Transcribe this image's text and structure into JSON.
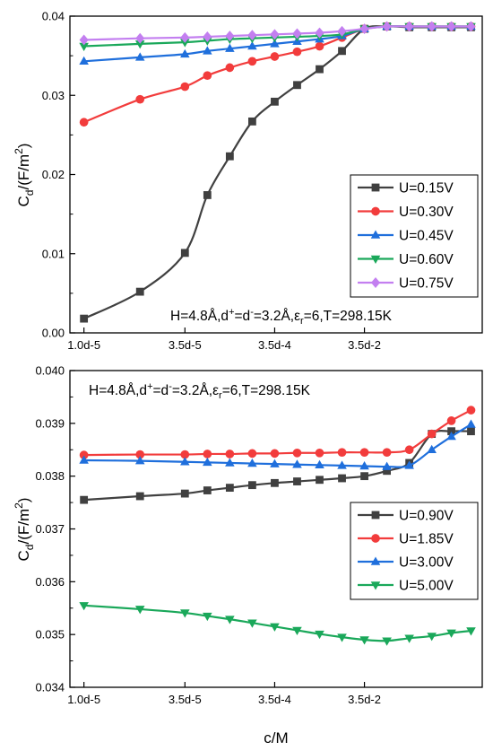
{
  "chart_data": [
    {
      "type": "line",
      "x_ticks": [
        "1.0d-5",
        "3.5d-5",
        "3.5d-4",
        "3.5d-2"
      ],
      "ylim": [
        0,
        0.04
      ],
      "y_ticks": [
        "0.00",
        "0.01",
        "0.02",
        "0.03",
        "0.04"
      ],
      "ylabel": "C",
      "ylabel_sub": "d",
      "ylabel_unit": "/(F/m",
      "ylabel_sup": "2",
      "ylabel_end": ")",
      "legend_position": "bottom-right",
      "annotation": {
        "p1": "H=4.8Å,d",
        "s1": "+",
        "p2": "=d",
        "s2": "-",
        "p3": "=3.2Å,ε",
        "s3": "r",
        "p4": "=6,T=298.15K"
      },
      "series": [
        {
          "name": "U=0.15V",
          "color": "#404040",
          "marker": "square",
          "x": [
            1.0,
            2.0,
            2.8,
            3.2,
            3.6,
            4.0,
            4.4,
            4.8,
            5.2,
            5.6,
            6.0,
            6.4,
            6.8,
            7.2,
            7.55,
            7.9
          ],
          "y": [
            0.0018,
            0.0052,
            0.0101,
            0.0174,
            0.0223,
            0.0267,
            0.0292,
            0.0313,
            0.0333,
            0.0356,
            0.0384,
            0.0387,
            0.0386,
            0.0386,
            0.0386,
            0.0386
          ]
        },
        {
          "name": "U=0.30V",
          "color": "#f23c3c",
          "marker": "circle",
          "x": [
            1.0,
            2.0,
            2.8,
            3.2,
            3.6,
            4.0,
            4.4,
            4.8,
            5.2,
            5.6,
            6.0,
            6.4,
            6.8,
            7.2,
            7.55,
            7.9
          ],
          "y": [
            0.0266,
            0.0295,
            0.0311,
            0.0325,
            0.0335,
            0.0343,
            0.0349,
            0.0355,
            0.0362,
            0.0373,
            0.0384,
            0.0387,
            0.0387,
            0.0387,
            0.0387,
            0.0387
          ]
        },
        {
          "name": "U=0.45V",
          "color": "#1f6fdc",
          "marker": "triangle-up",
          "x": [
            1.0,
            2.0,
            2.8,
            3.2,
            3.6,
            4.0,
            4.4,
            4.8,
            5.2,
            5.6,
            6.0,
            6.4,
            6.8,
            7.2,
            7.55,
            7.9
          ],
          "y": [
            0.0343,
            0.0348,
            0.0352,
            0.0356,
            0.0359,
            0.0362,
            0.0365,
            0.0368,
            0.0371,
            0.0375,
            0.0384,
            0.0387,
            0.0387,
            0.0387,
            0.0387,
            0.0387
          ]
        },
        {
          "name": "U=0.60V",
          "color": "#1aa85a",
          "marker": "triangle-down",
          "x": [
            1.0,
            2.0,
            2.8,
            3.2,
            3.6,
            4.0,
            4.4,
            4.8,
            5.2,
            5.6,
            6.0,
            6.4,
            6.8,
            7.2,
            7.55,
            7.9
          ],
          "y": [
            0.0362,
            0.0365,
            0.0367,
            0.0369,
            0.0371,
            0.0372,
            0.0373,
            0.0374,
            0.0375,
            0.0377,
            0.0384,
            0.0387,
            0.0387,
            0.0387,
            0.0387,
            0.0387
          ]
        },
        {
          "name": "U=0.75V",
          "color": "#c37ff0",
          "marker": "diamond",
          "x": [
            1.0,
            2.0,
            2.8,
            3.2,
            3.6,
            4.0,
            4.4,
            4.8,
            5.2,
            5.6,
            6.0,
            6.4,
            6.8,
            7.2,
            7.55,
            7.9
          ],
          "y": [
            0.037,
            0.0372,
            0.0373,
            0.0374,
            0.0375,
            0.0376,
            0.0377,
            0.0378,
            0.0379,
            0.0381,
            0.0384,
            0.0387,
            0.0387,
            0.0387,
            0.0387,
            0.0387
          ]
        }
      ]
    },
    {
      "type": "line",
      "x_ticks": [
        "1.0d-5",
        "3.5d-5",
        "3.5d-4",
        "3.5d-2"
      ],
      "xlabel": "c/M",
      "ylim": [
        0.034,
        0.04
      ],
      "y_ticks": [
        "0.034",
        "0.035",
        "0.036",
        "0.037",
        "0.038",
        "0.039",
        "0.040"
      ],
      "ylabel": "C",
      "ylabel_sub": "d",
      "ylabel_unit": "/(F/m",
      "ylabel_sup": "2",
      "ylabel_end": ")",
      "legend_position": "bottom-right",
      "annotation": {
        "p1": "H=4.8Å,d",
        "s1": "+",
        "p2": "=d",
        "s2": "-",
        "p3": "=3.2Å,ε",
        "s3": "r",
        "p4": "=6,T=298.15K"
      },
      "series": [
        {
          "name": "U=0.90V",
          "color": "#404040",
          "marker": "square",
          "x": [
            1.0,
            2.0,
            2.8,
            3.2,
            3.6,
            4.0,
            4.4,
            4.8,
            5.2,
            5.6,
            6.0,
            6.4,
            6.8,
            7.2,
            7.55,
            7.9
          ],
          "y": [
            0.03755,
            0.03762,
            0.03767,
            0.03773,
            0.03778,
            0.03783,
            0.03787,
            0.0379,
            0.03793,
            0.03796,
            0.038,
            0.0381,
            0.03825,
            0.0388,
            0.03885,
            0.03885
          ]
        },
        {
          "name": "U=1.85V",
          "color": "#f23c3c",
          "marker": "circle",
          "x": [
            1.0,
            2.0,
            2.8,
            3.2,
            3.6,
            4.0,
            4.4,
            4.8,
            5.2,
            5.6,
            6.0,
            6.4,
            6.8,
            7.2,
            7.55,
            7.9
          ],
          "y": [
            0.0384,
            0.03841,
            0.03841,
            0.03842,
            0.03842,
            0.03843,
            0.03843,
            0.03844,
            0.03844,
            0.03845,
            0.03845,
            0.03845,
            0.0385,
            0.0388,
            0.03905,
            0.03925
          ]
        },
        {
          "name": "U=3.00V",
          "color": "#1f6fdc",
          "marker": "triangle-up",
          "x": [
            1.0,
            2.0,
            2.8,
            3.2,
            3.6,
            4.0,
            4.4,
            4.8,
            5.2,
            5.6,
            6.0,
            6.4,
            6.8,
            7.2,
            7.55,
            7.9
          ],
          "y": [
            0.0383,
            0.03829,
            0.03827,
            0.03826,
            0.03825,
            0.03824,
            0.03823,
            0.03822,
            0.03821,
            0.0382,
            0.03819,
            0.03818,
            0.0382,
            0.0385,
            0.03875,
            0.03898
          ]
        },
        {
          "name": "U=5.00V",
          "color": "#1aa85a",
          "marker": "triangle-down",
          "x": [
            1.0,
            2.0,
            2.8,
            3.2,
            3.6,
            4.0,
            4.4,
            4.8,
            5.2,
            5.6,
            6.0,
            6.4,
            6.8,
            7.2,
            7.55,
            7.9
          ],
          "y": [
            0.03555,
            0.03548,
            0.03541,
            0.03535,
            0.03529,
            0.03522,
            0.03515,
            0.03508,
            0.03501,
            0.03495,
            0.0349,
            0.03488,
            0.03493,
            0.03497,
            0.03503,
            0.03507
          ]
        }
      ]
    }
  ]
}
